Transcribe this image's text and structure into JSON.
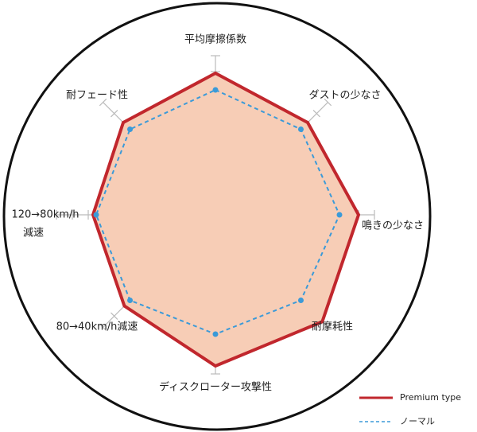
{
  "chart_data": {
    "type": "radar",
    "categories": [
      "平均摩擦係数",
      "ダストの少なさ",
      "鳴きの少なさ",
      "耐摩耗性",
      "ディスクローター攻撃性",
      "80→40km/h減速",
      [
        "120→80km/h",
        "減速"
      ],
      "耐フェード性"
    ],
    "series": [
      {
        "name": "Premium type",
        "color": "#c1272d",
        "fill": "#f7cdb6",
        "values": [
          8.9,
          8.2,
          9.0,
          9.5,
          9.5,
          8.1,
          7.7,
          8.2
        ]
      },
      {
        "name": "ノーマル",
        "color": "#3b9ad8",
        "values": [
          7.85,
          7.6,
          7.8,
          7.6,
          7.5,
          7.6,
          7.5,
          7.6
        ]
      }
    ],
    "ylim": [
      0,
      10
    ],
    "yticks": [
      1,
      2,
      3,
      4,
      5,
      6,
      7,
      8,
      9,
      10
    ]
  }
}
